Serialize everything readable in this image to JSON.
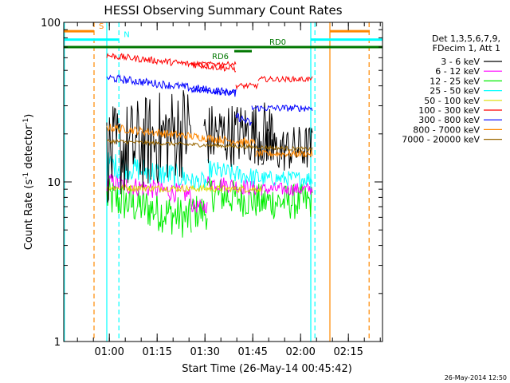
{
  "chart_data": {
    "type": "line",
    "title": "HESSI Observing Summary Count Rates",
    "xlabel": "Start Time (26-May-14 00:45:42)",
    "ylabel": "Count Rate (s⁻¹ detector⁻¹)",
    "ylabel_main": "Count Rate (s",
    "ylabel_sup1": "-1",
    "ylabel_mid": " detector",
    "ylabel_sup2": "-1",
    "ylabel_end": ")",
    "yscale": "log",
    "ylim": [
      1,
      100
    ],
    "xlim": [
      0,
      100
    ],
    "x_unit": "minutes since 00:45:42",
    "y_ticks": [
      {
        "value": 1,
        "label": "1"
      },
      {
        "value": 10,
        "label": "10"
      },
      {
        "value": 100,
        "label": "100"
      }
    ],
    "x_ticks": [
      {
        "value": 14.3,
        "label": "01:00"
      },
      {
        "value": 29.3,
        "label": "01:15"
      },
      {
        "value": 44.3,
        "label": "01:30"
      },
      {
        "value": 59.3,
        "label": "01:45"
      },
      {
        "value": 74.3,
        "label": "02:00"
      },
      {
        "value": 89.3,
        "label": "02:15"
      }
    ],
    "legend_header": [
      "Det 1,3,5,6,7,9,",
      "FDecim 1, Att 1"
    ],
    "legend_position": "right",
    "series": [
      {
        "name": "3 - 6 keV",
        "color": "#000000",
        "segments": [
          [
            13.5,
            40,
            14.5,
            22,
            2.0
          ],
          [
            44,
            66,
            19.5,
            20.5,
            1.6
          ],
          [
            62,
            78,
            15.5,
            16.5,
            1.4
          ]
        ]
      },
      {
        "name": "6 - 12 keV",
        "color": "#ff00ff",
        "segments": [
          [
            13.5,
            40,
            10,
            8.3,
            1.15
          ],
          [
            40,
            45,
            7,
            7,
            1.1
          ],
          [
            45,
            62,
            10,
            9,
            1.12
          ],
          [
            62,
            78,
            9,
            9,
            1.1
          ]
        ]
      },
      {
        "name": "12 - 25 keV",
        "color": "#00ee00",
        "segments": [
          [
            13.5,
            40,
            8,
            5.8,
            1.35
          ],
          [
            40,
            45,
            6.5,
            6.5,
            1.3
          ],
          [
            45,
            62,
            8.5,
            7.5,
            1.3
          ],
          [
            62,
            78,
            7.5,
            7.5,
            1.3
          ]
        ]
      },
      {
        "name": "25 - 50 keV",
        "color": "#00ffff",
        "segments": [
          [
            13.5,
            40,
            13,
            10.5,
            1.2
          ],
          [
            40,
            45,
            10,
            10,
            1.15
          ],
          [
            45,
            62,
            12,
            10.5,
            1.15
          ],
          [
            62,
            78,
            10.5,
            10.5,
            1.12
          ]
        ]
      },
      {
        "name": "50 - 100 keV",
        "color": "#dddd00",
        "segments": [
          [
            13.5,
            62,
            9.2,
            9.0,
            1.05
          ]
        ]
      },
      {
        "name": "100 - 300 keV",
        "color": "#ff0000",
        "segments": [
          [
            13.5,
            54,
            62,
            51,
            1.05
          ],
          [
            40,
            54,
            55,
            55,
            1.03
          ],
          [
            54,
            61,
            40,
            40,
            1.04
          ],
          [
            61,
            78,
            44,
            44,
            1.04
          ]
        ]
      },
      {
        "name": "300 - 800 keV",
        "color": "#0000ff",
        "segments": [
          [
            13.5,
            54,
            45,
            36,
            1.06
          ],
          [
            40,
            54,
            38,
            36,
            1.04
          ],
          [
            54,
            59,
            26,
            23,
            1.06
          ],
          [
            59,
            78,
            29,
            29,
            1.05
          ]
        ]
      },
      {
        "name": "800 - 7000 keV",
        "color": "#ff8800",
        "segments": [
          [
            13.5,
            60,
            22,
            17.5,
            1.06
          ],
          [
            60,
            78,
            15,
            15,
            1.05
          ]
        ]
      },
      {
        "name": "7000 - 20000 keV",
        "color": "#996600",
        "segments": [
          [
            13.5,
            78,
            18,
            16,
            1.03
          ]
        ]
      }
    ],
    "flag_bars": [
      {
        "label": "S",
        "color": "#ff8800",
        "y": 88,
        "x_start": 0,
        "x_end": 9.5
      },
      {
        "label": "N",
        "color": "#00ffff",
        "y": 78,
        "x_start": 0,
        "x_end": 17.3
      },
      {
        "label": "",
        "color": "#ff8800",
        "y": 88,
        "x_start": 83.5,
        "x_end": 96
      },
      {
        "label": "",
        "color": "#00ffff",
        "y": 78,
        "x_start": 77.5,
        "x_end": 100
      },
      {
        "label": "",
        "color": "#007700",
        "y": 70,
        "x_start": 0,
        "x_end": 100
      },
      {
        "label": "RD6",
        "color": "#007700",
        "y": 66,
        "x_start": 53.5,
        "x_end": 59
      },
      {
        "label": "RD0",
        "color": "#007700",
        "y": 70,
        "x_start": 57,
        "x_end": 63
      }
    ],
    "vertical_lines": [
      {
        "x": 9.5,
        "color": "#ff8800",
        "style": "dashed"
      },
      {
        "x": 13.5,
        "color": "#00ffff",
        "style": "solid"
      },
      {
        "x": 17.3,
        "color": "#00ffff",
        "style": "dashed"
      },
      {
        "x": 77.5,
        "color": "#00ffff",
        "style": "solid"
      },
      {
        "x": 78.8,
        "color": "#00ffff",
        "style": "dashed"
      },
      {
        "x": 83.5,
        "color": "#ff8800",
        "style": "solid"
      },
      {
        "x": 95.8,
        "color": "#ff8800",
        "style": "dashed"
      },
      {
        "x": 0.2,
        "color": "#00ffff",
        "style": "solid"
      }
    ],
    "timestamp": "26-May-2014 12:50"
  }
}
